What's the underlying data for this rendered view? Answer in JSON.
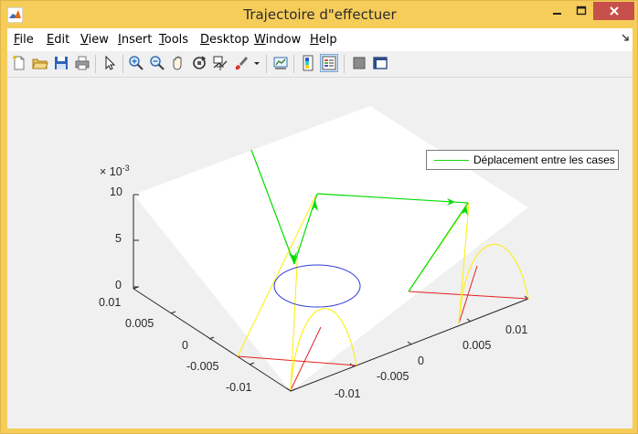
{
  "window": {
    "title": "Trajectoire d\"effectuer",
    "app_icon": "matlab-icon",
    "controls": [
      "minimize-icon",
      "maximize-icon",
      "close-icon"
    ],
    "titlebar_color": "#f7cd5a",
    "close_color": "#c7504a"
  },
  "menubar": {
    "items": [
      {
        "key": "F",
        "rest": "ile"
      },
      {
        "key": "E",
        "rest": "dit"
      },
      {
        "key": "V",
        "rest": "iew"
      },
      {
        "key": "I",
        "rest": "nsert"
      },
      {
        "key": "T",
        "rest": "ools"
      },
      {
        "key": "D",
        "rest": "esktop"
      },
      {
        "key": "W",
        "rest": "indow"
      },
      {
        "key": "H",
        "rest": "elp"
      }
    ],
    "dock_icon": "dock-arrow-icon"
  },
  "toolbar": {
    "buttons": [
      "new-figure-icon",
      "open-file-icon",
      "save-icon",
      "print-icon",
      "edit-plot-icon",
      "zoom-in-icon",
      "zoom-out-icon",
      "pan-icon",
      "rotate-3d-icon",
      "data-cursor-icon",
      "brush-icon",
      "brush-dropdown-icon",
      "link-plot-icon",
      "insert-colorbar-icon",
      "insert-legend-icon",
      "hide-plot-tools-icon",
      "show-plot-tools-icon"
    ],
    "active": "insert-legend-icon"
  },
  "plot": {
    "legend": "Déplacement entre les cases",
    "z_exponent_base": "× 10",
    "z_exponent_power": "-3",
    "z_ticks": [
      "10",
      "5",
      "0"
    ],
    "y_ticks": [
      "0.01",
      "0.005",
      "0",
      "-0.005",
      "-0.01"
    ],
    "x_ticks": [
      "-0.01",
      "-0.005",
      "0",
      "0.005",
      "0.01"
    ],
    "colors": {
      "trajectory": "#00dd00",
      "ellipse": "#2f3bd8",
      "arc": "#ffee00",
      "red": "#e32121"
    }
  }
}
